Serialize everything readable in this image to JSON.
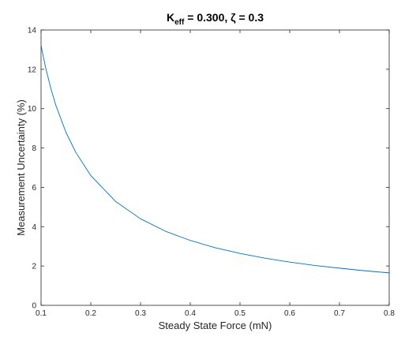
{
  "chart_data": {
    "type": "line",
    "title": {
      "main": "K",
      "subscript": "eff",
      "rest": " = 0.300, ζ = 0.3"
    },
    "xlabel": "Steady State Force (mN)",
    "ylabel": "Measurement Uncertainty (%)",
    "xlim": [
      0.1,
      0.8
    ],
    "ylim": [
      0,
      14
    ],
    "xticks": [
      "0.1",
      "0.2",
      "0.3",
      "0.4",
      "0.5",
      "0.6",
      "0.7",
      "0.8"
    ],
    "yticks": [
      "0",
      "2",
      "4",
      "6",
      "8",
      "10",
      "12",
      "14"
    ],
    "grid": false,
    "series": [
      {
        "color": "#0072bd",
        "x": [
          0.1,
          0.11,
          0.12,
          0.13,
          0.15,
          0.17,
          0.2,
          0.25,
          0.3,
          0.35,
          0.4,
          0.45,
          0.5,
          0.55,
          0.6,
          0.65,
          0.7,
          0.75,
          0.8
        ],
        "y": [
          13.2,
          12.0,
          11.0,
          10.15,
          8.8,
          7.77,
          6.6,
          5.28,
          4.4,
          3.77,
          3.3,
          2.93,
          2.64,
          2.4,
          2.2,
          2.03,
          1.89,
          1.76,
          1.65
        ]
      }
    ]
  }
}
